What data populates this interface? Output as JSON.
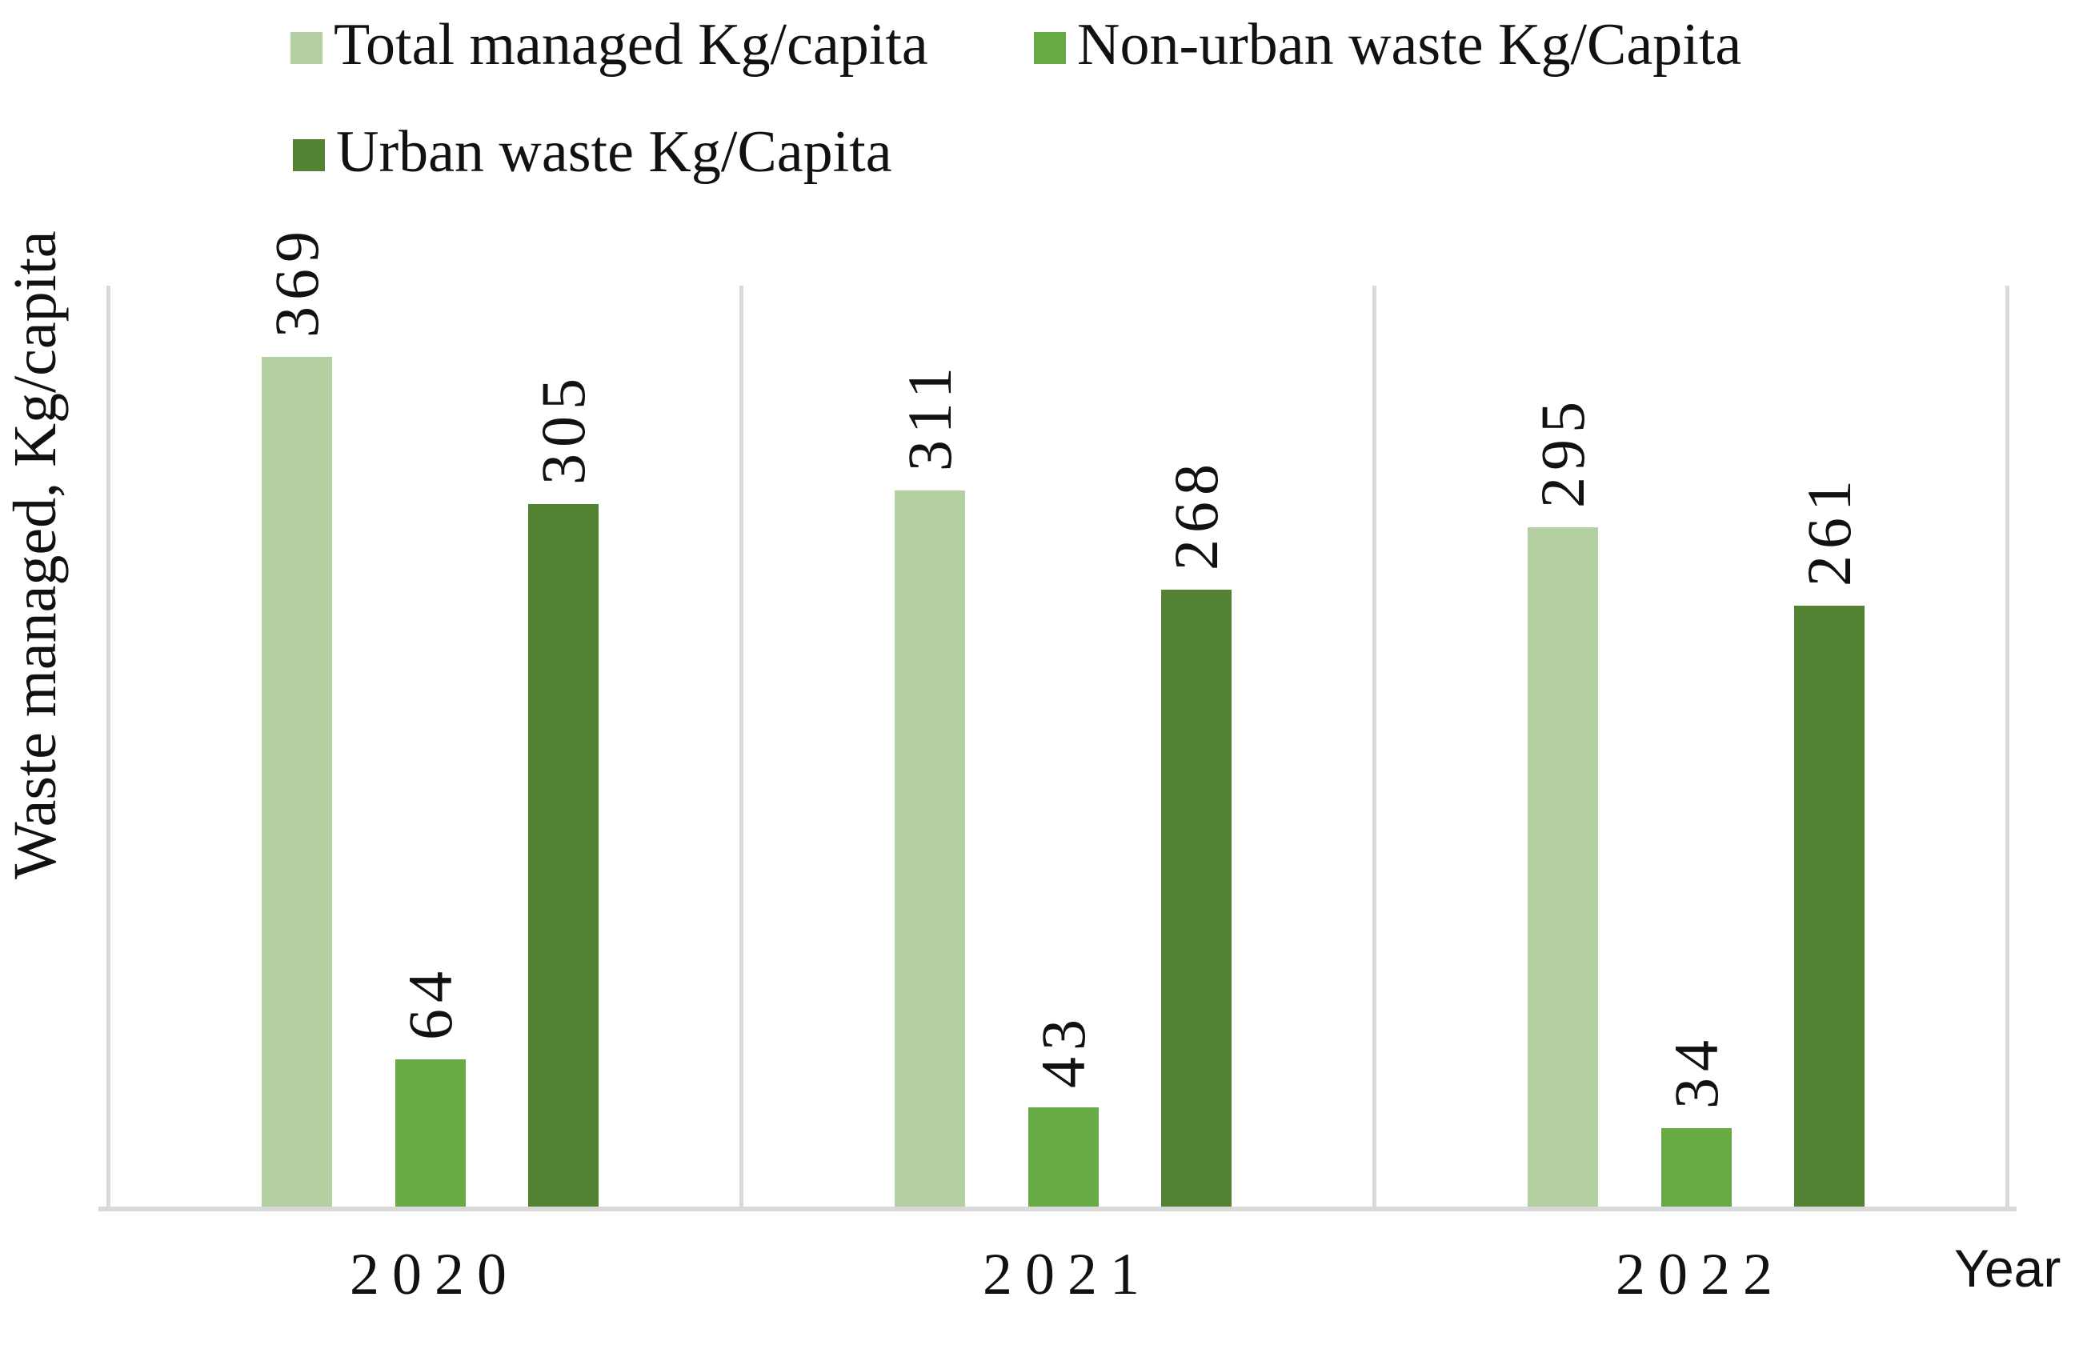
{
  "legend": {
    "items": [
      {
        "label": "Total managed Kg/capita",
        "color": "#b4cfa2"
      },
      {
        "label": "Non-urban waste Kg/Capita",
        "color": "#68ab44"
      },
      {
        "label": "Urban waste Kg/Capita",
        "color": "#538233"
      }
    ]
  },
  "axes": {
    "y_title": "Waste managed, Kg/capita",
    "x_title": "Year"
  },
  "chart_data": {
    "type": "bar",
    "categories": [
      "2020",
      "2021",
      "2022"
    ],
    "series": [
      {
        "name": "Total managed Kg/capita",
        "color": "#b4cfa2",
        "values": [
          369,
          311,
          295
        ]
      },
      {
        "name": "Non-urban waste Kg/Capita",
        "color": "#68ab44",
        "values": [
          64,
          43,
          34
        ]
      },
      {
        "name": "Urban waste Kg/Capita",
        "color": "#538233",
        "values": [
          305,
          268,
          261
        ]
      }
    ],
    "title": "",
    "xlabel": "Year",
    "ylabel": "Waste managed, Kg/capita",
    "ylim": [
      0,
      400
    ],
    "grid": false,
    "legend_position": "top-left",
    "value_labels": "rotated-90-above-bars",
    "axis_line_color": "#d9d9d9",
    "group_separator_lines": true
  }
}
